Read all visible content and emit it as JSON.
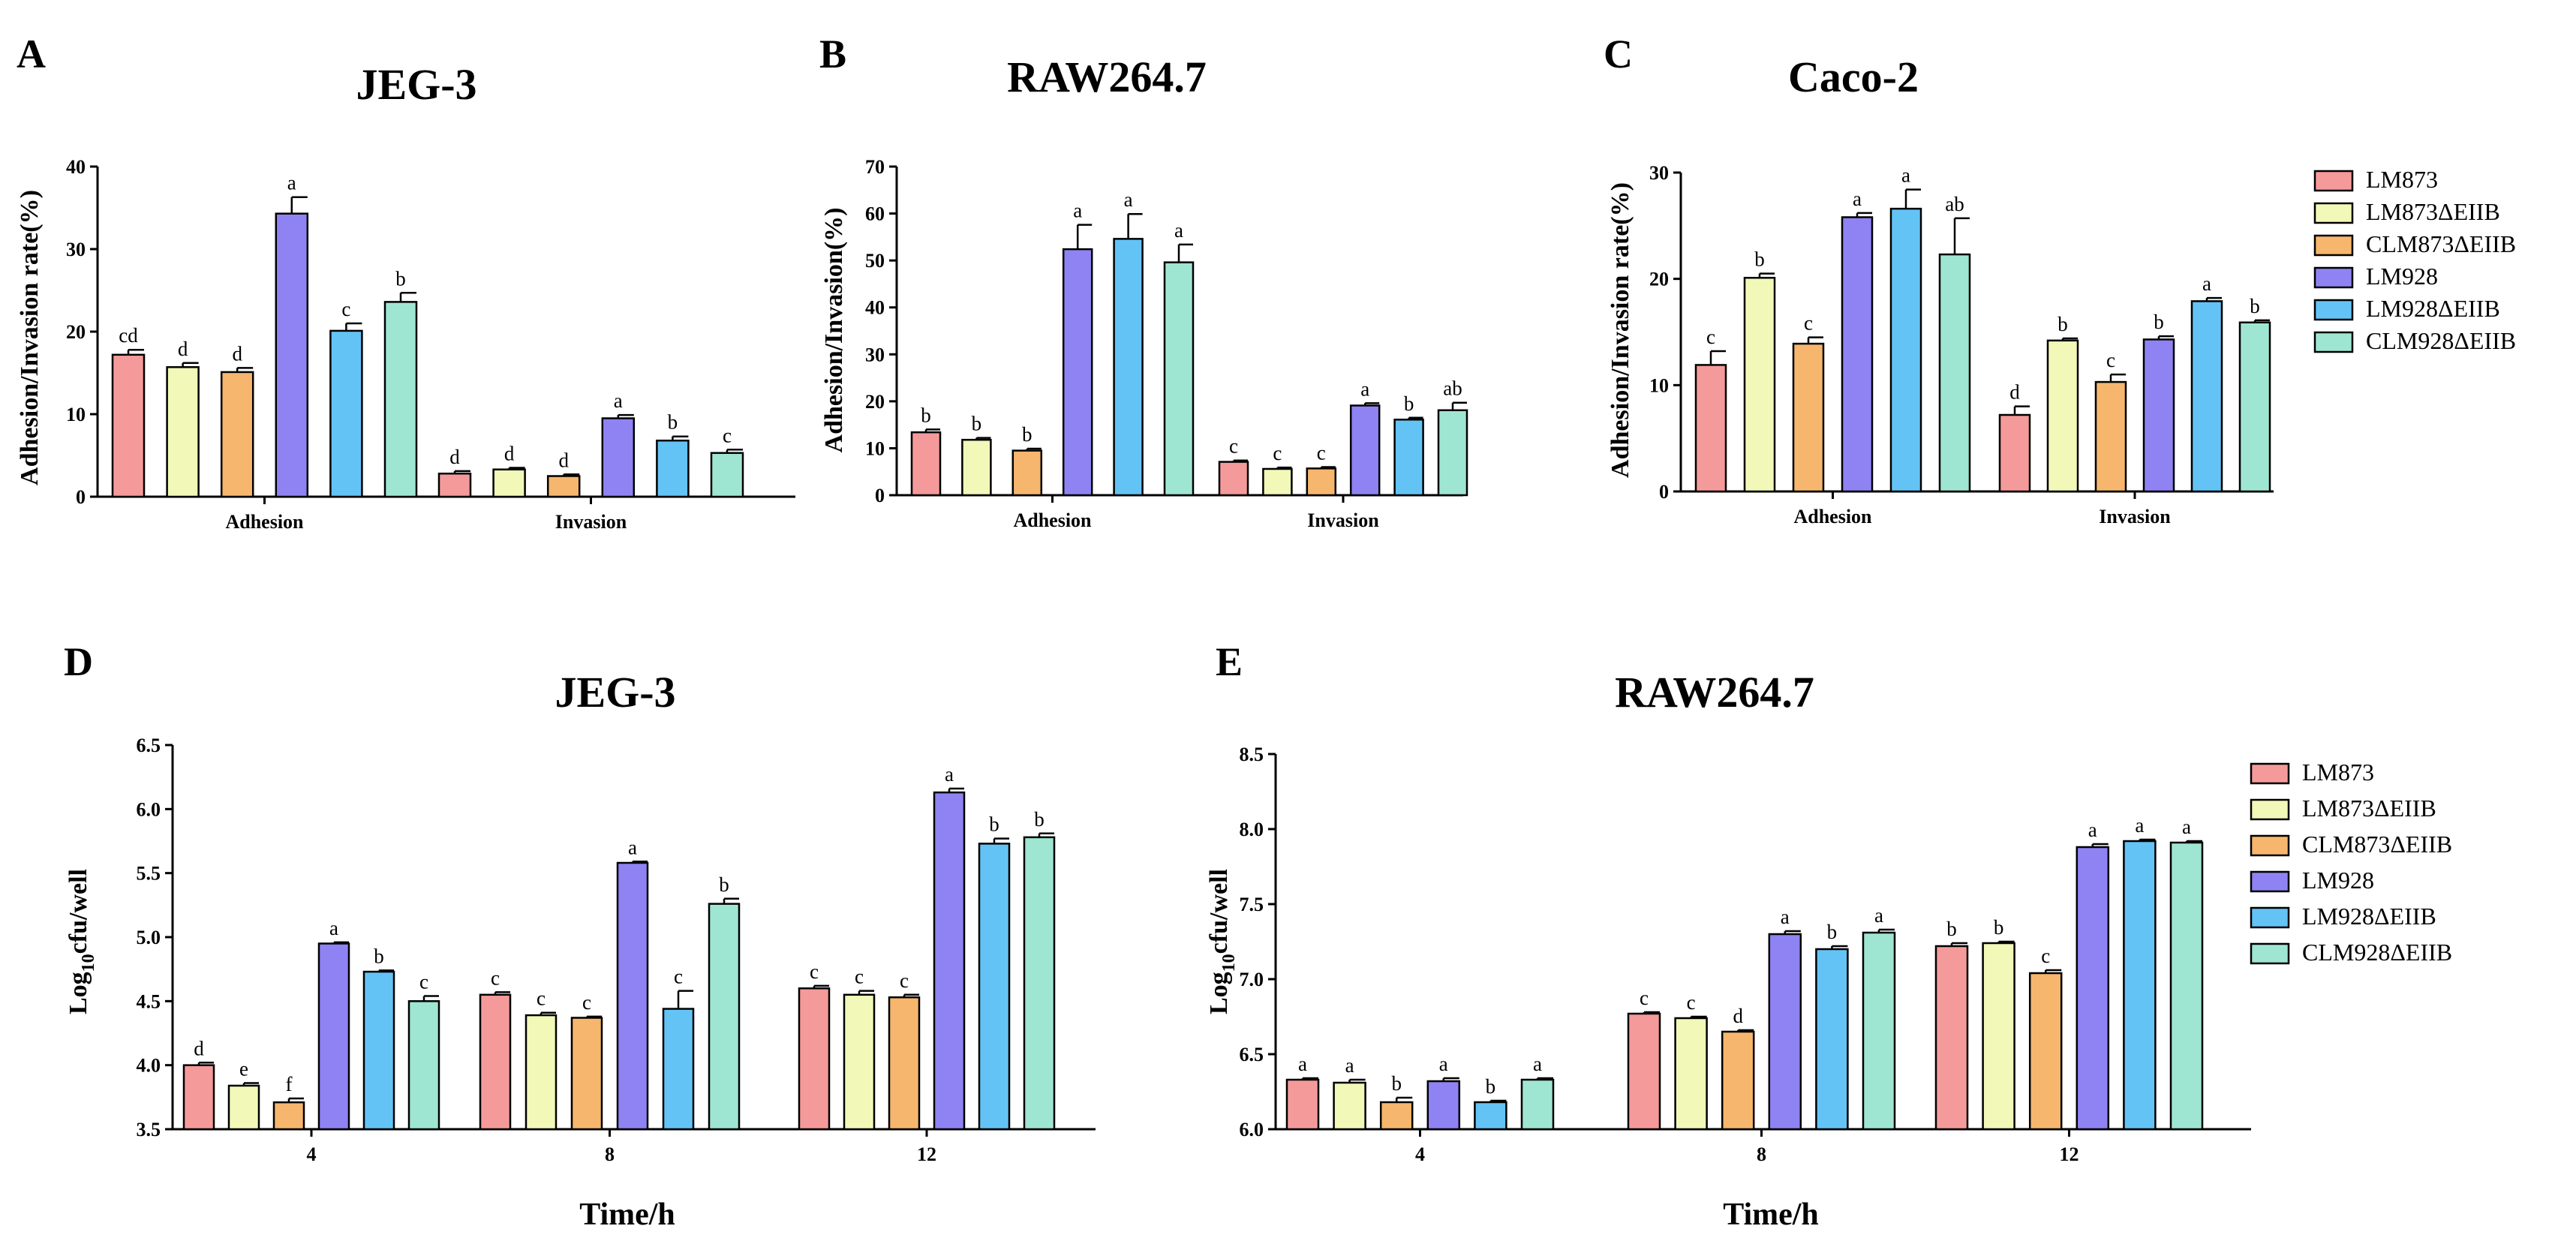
{
  "colors": [
    "#f59a9a",
    "#f2f8b8",
    "#f6b66e",
    "#8f83f3",
    "#64c3f5",
    "#9fe6d2"
  ],
  "legend_entries": [
    "LM873",
    "LM873ΔEIIB",
    "CLM873ΔEIIB",
    "LM928",
    "LM928ΔEIIB",
    "CLM928ΔEIIB"
  ],
  "chart_data": [
    {
      "panel": "A",
      "type": "bar",
      "title": "JEG-3",
      "ylabel": "Adhesion/Invasion rate(%)",
      "xlabel": "",
      "ylim": [
        0,
        40
      ],
      "yticks": [
        0,
        10,
        20,
        30,
        40
      ],
      "categories": [
        "Adhesion",
        "Invasion"
      ],
      "series": [
        {
          "name": "LM873",
          "values": [
            17.2,
            2.8
          ],
          "errors": [
            0.6,
            0.3
          ],
          "letters": [
            "cd",
            "d"
          ]
        },
        {
          "name": "LM873ΔEIIB",
          "values": [
            15.7,
            3.3
          ],
          "errors": [
            0.5,
            0.2
          ],
          "letters": [
            "d",
            "d"
          ]
        },
        {
          "name": "CLM873ΔEIIB",
          "values": [
            15.1,
            2.5
          ],
          "errors": [
            0.5,
            0.2
          ],
          "letters": [
            "d",
            "d"
          ]
        },
        {
          "name": "LM928",
          "values": [
            34.3,
            9.5
          ],
          "errors": [
            2.0,
            0.4
          ],
          "letters": [
            "a",
            "a"
          ]
        },
        {
          "name": "LM928ΔEIIB",
          "values": [
            20.1,
            6.8
          ],
          "errors": [
            0.9,
            0.5
          ],
          "letters": [
            "c",
            "b"
          ]
        },
        {
          "name": "CLM928ΔEIIB",
          "values": [
            23.6,
            5.3
          ],
          "errors": [
            1.1,
            0.4
          ],
          "letters": [
            "b",
            "c"
          ]
        }
      ]
    },
    {
      "panel": "B",
      "type": "bar",
      "title": "RAW264.7",
      "ylabel": "Adhesion/Invasion(%)",
      "xlabel": "",
      "ylim": [
        0,
        70
      ],
      "yticks": [
        0,
        10,
        20,
        30,
        40,
        50,
        60,
        70
      ],
      "categories": [
        "Adhesion",
        "Invasion"
      ],
      "series": [
        {
          "name": "LM873",
          "values": [
            13.4,
            7.1
          ],
          "errors": [
            0.6,
            0.3
          ],
          "letters": [
            "b",
            "c"
          ]
        },
        {
          "name": "LM873ΔEIIB",
          "values": [
            11.8,
            5.6
          ],
          "errors": [
            0.4,
            0.3
          ],
          "letters": [
            "b",
            "c"
          ]
        },
        {
          "name": "CLM873ΔEIIB",
          "values": [
            9.5,
            5.7
          ],
          "errors": [
            0.4,
            0.3
          ],
          "letters": [
            "b",
            "c"
          ]
        },
        {
          "name": "LM928",
          "values": [
            52.4,
            19.1
          ],
          "errors": [
            5.2,
            0.5
          ],
          "letters": [
            "a",
            "a"
          ]
        },
        {
          "name": "LM928ΔEIIB",
          "values": [
            54.6,
            16.1
          ],
          "errors": [
            5.3,
            0.4
          ],
          "letters": [
            "a",
            "b"
          ]
        },
        {
          "name": "CLM928ΔEIIB",
          "values": [
            49.6,
            18.1
          ],
          "errors": [
            3.8,
            1.6
          ],
          "letters": [
            "a",
            "ab"
          ]
        }
      ]
    },
    {
      "panel": "C",
      "type": "bar",
      "title": "Caco-2",
      "ylabel": "Adhesion/Invasion rate(%)",
      "xlabel": "",
      "ylim": [
        0,
        30
      ],
      "yticks": [
        0,
        10,
        20,
        30
      ],
      "categories": [
        "Adhesion",
        "Invasion"
      ],
      "series": [
        {
          "name": "LM873",
          "values": [
            11.9,
            7.2
          ],
          "errors": [
            1.3,
            0.8
          ],
          "letters": [
            "c",
            "d"
          ]
        },
        {
          "name": "LM873ΔEIIB",
          "values": [
            20.1,
            14.2
          ],
          "errors": [
            0.4,
            0.2
          ],
          "letters": [
            "b",
            "b"
          ]
        },
        {
          "name": "CLM873ΔEIIB",
          "values": [
            13.9,
            10.3
          ],
          "errors": [
            0.6,
            0.7
          ],
          "letters": [
            "c",
            "c"
          ]
        },
        {
          "name": "LM928",
          "values": [
            25.8,
            14.3
          ],
          "errors": [
            0.4,
            0.3
          ],
          "letters": [
            "a",
            "b"
          ]
        },
        {
          "name": "LM928ΔEIIB",
          "values": [
            26.6,
            17.9
          ],
          "errors": [
            1.8,
            0.3
          ],
          "letters": [
            "a",
            "a"
          ]
        },
        {
          "name": "CLM928ΔEIIB",
          "values": [
            22.3,
            15.9
          ],
          "errors": [
            3.4,
            0.2
          ],
          "letters": [
            "ab",
            "b"
          ]
        }
      ]
    },
    {
      "panel": "D",
      "type": "bar",
      "title": "JEG-3",
      "ylabel": "Log10cfu/well",
      "xlabel": "Time/h",
      "ylim": [
        3.5,
        6.5
      ],
      "yticks": [
        3.5,
        4.0,
        4.5,
        5.0,
        5.5,
        6.0,
        6.5
      ],
      "categories": [
        "4",
        "8",
        "12"
      ],
      "series": [
        {
          "name": "LM873",
          "values": [
            4.0,
            4.55,
            4.6
          ],
          "errors": [
            0.02,
            0.02,
            0.02
          ],
          "letters": [
            "d",
            "c",
            "c"
          ]
        },
        {
          "name": "LM873ΔEIIB",
          "values": [
            3.84,
            4.39,
            4.55
          ],
          "errors": [
            0.02,
            0.02,
            0.03
          ],
          "letters": [
            "e",
            "c",
            "c"
          ]
        },
        {
          "name": "CLM873ΔEIIB",
          "values": [
            3.71,
            4.37,
            4.53
          ],
          "errors": [
            0.03,
            0.01,
            0.02
          ],
          "letters": [
            "f",
            "c",
            "c"
          ]
        },
        {
          "name": "LM928",
          "values": [
            4.95,
            5.58,
            6.13
          ],
          "errors": [
            0.01,
            0.01,
            0.03
          ],
          "letters": [
            "a",
            "a",
            "a"
          ]
        },
        {
          "name": "LM928ΔEIIB",
          "values": [
            4.73,
            4.44,
            5.73
          ],
          "errors": [
            0.01,
            0.14,
            0.04
          ],
          "letters": [
            "b",
            "c",
            "b"
          ]
        },
        {
          "name": "CLM928ΔEIIB",
          "values": [
            4.5,
            5.26,
            5.78
          ],
          "errors": [
            0.04,
            0.04,
            0.03
          ],
          "letters": [
            "c",
            "b",
            "b"
          ]
        }
      ]
    },
    {
      "panel": "E",
      "type": "bar",
      "title": "RAW264.7",
      "ylabel": "Log10cfu/well",
      "xlabel": "Time/h",
      "ylim": [
        6.0,
        8.5
      ],
      "yticks": [
        6.0,
        6.5,
        7.0,
        7.5,
        8.0,
        8.5
      ],
      "categories": [
        "4",
        "8",
        "12"
      ],
      "series": [
        {
          "name": "LM873",
          "values": [
            6.33,
            6.77,
            7.22
          ],
          "errors": [
            0.01,
            0.01,
            0.02
          ],
          "letters": [
            "a",
            "c",
            "b"
          ]
        },
        {
          "name": "LM873ΔEIIB",
          "values": [
            6.31,
            6.74,
            7.24
          ],
          "errors": [
            0.02,
            0.01,
            0.01
          ],
          "letters": [
            "a",
            "c",
            "b"
          ]
        },
        {
          "name": "CLM873ΔEIIB",
          "values": [
            6.18,
            6.65,
            7.04
          ],
          "errors": [
            0.03,
            0.01,
            0.02
          ],
          "letters": [
            "b",
            "d",
            "c"
          ]
        },
        {
          "name": "LM928",
          "values": [
            6.32,
            7.3,
            7.88
          ],
          "errors": [
            0.02,
            0.02,
            0.02
          ],
          "letters": [
            "a",
            "a",
            "a"
          ]
        },
        {
          "name": "LM928ΔEIIB",
          "values": [
            6.18,
            7.2,
            7.92
          ],
          "errors": [
            0.01,
            0.02,
            0.01
          ],
          "letters": [
            "b",
            "b",
            "a"
          ]
        },
        {
          "name": "CLM928ΔEIIB",
          "values": [
            6.33,
            7.31,
            7.91
          ],
          "errors": [
            0.01,
            0.02,
            0.01
          ],
          "letters": [
            "a",
            "a",
            "a"
          ]
        }
      ]
    }
  ]
}
